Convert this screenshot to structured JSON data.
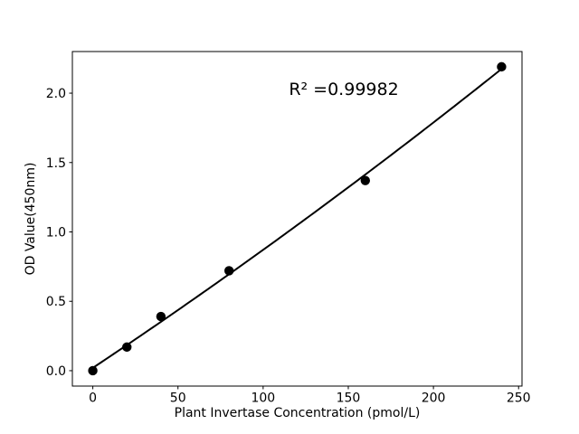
{
  "chart_data": {
    "type": "scatter",
    "title": "",
    "xlabel": "Plant Invertase Concentration (pmol/L)",
    "ylabel": "OD Value(450nm)",
    "annotation": {
      "text": "R² =0.99982"
    },
    "x": [
      0,
      20,
      40,
      80,
      160,
      240
    ],
    "y": [
      0.0,
      0.17,
      0.39,
      0.72,
      1.37,
      2.19
    ],
    "series": [
      {
        "name": "standard-curve-points",
        "marker": "filled-circle",
        "color": "#000000"
      }
    ],
    "fit_line": {
      "type": "quadratic",
      "a": 0.02,
      "b": 0.008172,
      "c": 3.355e-06,
      "x_range": [
        0,
        240
      ],
      "color": "#000000"
    },
    "xlim": [
      -12,
      252
    ],
    "ylim": [
      -0.111,
      2.3
    ],
    "x_ticks": [
      "0",
      "50",
      "100",
      "150",
      "200",
      "250"
    ],
    "y_ticks": [
      "0.0",
      "0.5",
      "1.0",
      "1.5",
      "2.0"
    ],
    "grid": false,
    "legend": null,
    "colors": {
      "axis": "#000000",
      "marker": "#000000",
      "line": "#000000",
      "text": "#000000",
      "background": "#ffffff"
    }
  }
}
